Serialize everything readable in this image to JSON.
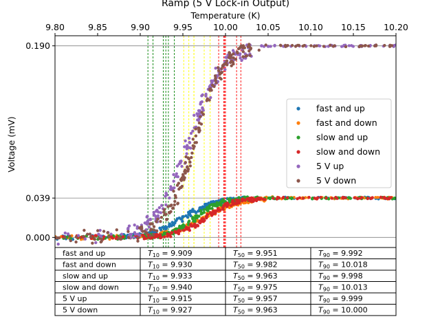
{
  "chart_data": {
    "type": "scatter",
    "title": "Ramp (5 V Lock-in Output)",
    "xlabel": "Temperature (K)",
    "ylabel": "Voltage (mV)",
    "xlim": [
      9.8,
      10.2
    ],
    "ylim": [
      -0.01,
      0.2
    ],
    "x_ticks": [
      "9.80",
      "9.85",
      "9.90",
      "9.95",
      "10.00",
      "10.05",
      "10.10",
      "10.15",
      "10.20"
    ],
    "y_ticks": [
      "0.000",
      "0.039",
      "0.190"
    ],
    "y_tick_values": [
      0.0,
      0.039,
      0.19
    ],
    "grid": "horizontal lines at y ticks",
    "legend_position": "center-right",
    "series": [
      {
        "name": "fast and up",
        "color": "#1f77b4",
        "T10": 9.909,
        "T50": 9.951,
        "T90": 9.992,
        "plateau": 0.039
      },
      {
        "name": "fast and down",
        "color": "#ff7f0e",
        "T10": 9.93,
        "T50": 9.982,
        "T90": 10.018,
        "plateau": 0.039
      },
      {
        "name": "slow and up",
        "color": "#2ca02c",
        "T10": 9.933,
        "T50": 9.963,
        "T90": 9.998,
        "plateau": 0.039
      },
      {
        "name": "slow and down",
        "color": "#d62728",
        "T10": 9.94,
        "T50": 9.975,
        "T90": 10.013,
        "plateau": 0.039
      },
      {
        "name": "5 V up",
        "color": "#9467bd",
        "T10": 9.915,
        "T50": 9.957,
        "T90": 9.999,
        "plateau": 0.19
      },
      {
        "name": "5 V down",
        "color": "#8c564b",
        "T10": 9.927,
        "T50": 9.963,
        "T90": 10.0,
        "plateau": 0.19
      }
    ],
    "vlines": {
      "T10_color": "#008000",
      "T50_color": "#ffff00",
      "T90_color": "#ff0000"
    },
    "table": {
      "rows": [
        {
          "label": "fast and up",
          "t10": "9.909",
          "t50": "9.951",
          "t90": "9.992"
        },
        {
          "label": "fast and down",
          "t10": "9.930",
          "t50": "9.982",
          "t90": "10.018"
        },
        {
          "label": "slow and up",
          "t10": "9.933",
          "t50": "9.963",
          "t90": "9.998"
        },
        {
          "label": "slow and down",
          "t10": "9.940",
          "t50": "9.975",
          "t90": "10.013"
        },
        {
          "label": "5 V up",
          "t10": "9.915",
          "t50": "9.957",
          "t90": "9.999"
        },
        {
          "label": "5 V down",
          "t10": "9.927",
          "t50": "9.963",
          "t90": "10.000"
        }
      ],
      "t10_prefix": "T",
      "t10_sub": "10",
      "t50_prefix": "T",
      "t50_sub": "50",
      "t90_prefix": "T",
      "t90_sub": "90",
      "eq": " = "
    }
  }
}
